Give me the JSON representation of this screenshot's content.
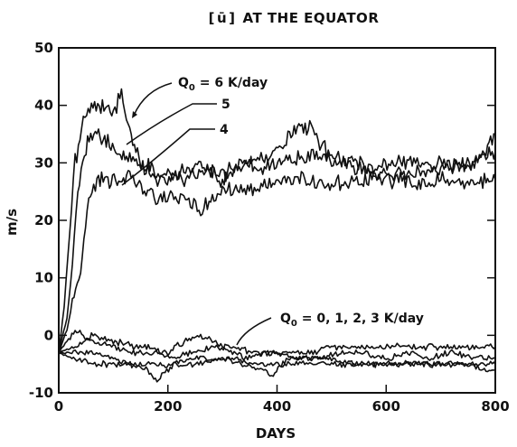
{
  "chart_data": {
    "type": "line",
    "title_bracket_open": "[",
    "title_bar_u": "ū",
    "title_bracket_close": "]",
    "title_text": "AT THE EQUATOR",
    "xlabel": "DAYS",
    "ylabel": "m/s",
    "xlim": [
      0,
      800
    ],
    "ylim": [
      -10,
      50
    ],
    "xticks": [
      0,
      200,
      400,
      600,
      800
    ],
    "yticks": [
      -10,
      0,
      10,
      20,
      30,
      40,
      50
    ],
    "grid": false,
    "annotations": {
      "q6": {
        "label": "Q",
        "sub": "0",
        "text": " = 6 K/day"
      },
      "q5": {
        "text": "5"
      },
      "q4": {
        "text": "4"
      },
      "qlow": {
        "label": "Q",
        "sub": "0",
        "text": " = 0, 1, 2, 3 K/day"
      }
    },
    "series": [
      {
        "key": "Q6",
        "points": [
          [
            0,
            -3
          ],
          [
            10,
            5
          ],
          [
            20,
            18
          ],
          [
            30,
            30
          ],
          [
            45,
            37
          ],
          [
            60,
            39.5
          ],
          [
            80,
            40
          ],
          [
            100,
            39
          ],
          [
            115,
            42
          ],
          [
            130,
            36
          ],
          [
            150,
            30
          ],
          [
            170,
            29
          ],
          [
            200,
            28
          ],
          [
            230,
            27
          ],
          [
            260,
            29
          ],
          [
            300,
            28
          ],
          [
            340,
            30
          ],
          [
            380,
            31
          ],
          [
            420,
            34
          ],
          [
            440,
            37
          ],
          [
            460,
            36
          ],
          [
            500,
            31
          ],
          [
            540,
            29
          ],
          [
            580,
            28
          ],
          [
            620,
            28
          ],
          [
            660,
            28
          ],
          [
            700,
            29
          ],
          [
            740,
            29
          ],
          [
            780,
            31
          ],
          [
            800,
            35
          ]
        ]
      },
      {
        "key": "Q5",
        "points": [
          [
            0,
            -3
          ],
          [
            15,
            3
          ],
          [
            25,
            12
          ],
          [
            35,
            26
          ],
          [
            50,
            33
          ],
          [
            70,
            35
          ],
          [
            90,
            34
          ],
          [
            110,
            32
          ],
          [
            130,
            31
          ],
          [
            160,
            29
          ],
          [
            190,
            27
          ],
          [
            220,
            28
          ],
          [
            260,
            30
          ],
          [
            300,
            27
          ],
          [
            340,
            30
          ],
          [
            380,
            29
          ],
          [
            420,
            31
          ],
          [
            460,
            31
          ],
          [
            500,
            31
          ],
          [
            540,
            30
          ],
          [
            580,
            29
          ],
          [
            620,
            30
          ],
          [
            660,
            30
          ],
          [
            700,
            30
          ],
          [
            740,
            30
          ],
          [
            780,
            31
          ],
          [
            800,
            32
          ]
        ]
      },
      {
        "key": "Q4",
        "points": [
          [
            0,
            -3
          ],
          [
            15,
            1
          ],
          [
            25,
            6
          ],
          [
            40,
            11
          ],
          [
            55,
            24
          ],
          [
            70,
            27
          ],
          [
            90,
            27
          ],
          [
            110,
            27
          ],
          [
            130,
            28
          ],
          [
            160,
            25
          ],
          [
            190,
            24
          ],
          [
            220,
            24
          ],
          [
            260,
            22
          ],
          [
            300,
            25
          ],
          [
            340,
            25
          ],
          [
            380,
            26
          ],
          [
            420,
            27
          ],
          [
            460,
            27
          ],
          [
            500,
            26
          ],
          [
            540,
            27
          ],
          [
            580,
            27
          ],
          [
            620,
            27
          ],
          [
            660,
            26
          ],
          [
            700,
            27
          ],
          [
            740,
            26
          ],
          [
            780,
            27
          ],
          [
            800,
            27
          ]
        ]
      },
      {
        "key": "Q3",
        "points": [
          [
            0,
            -3
          ],
          [
            30,
            1
          ],
          [
            60,
            -1
          ],
          [
            100,
            -2
          ],
          [
            140,
            -3
          ],
          [
            170,
            -3
          ],
          [
            200,
            -3
          ],
          [
            230,
            -1
          ],
          [
            260,
            0
          ],
          [
            300,
            -2
          ],
          [
            340,
            -4
          ],
          [
            380,
            -3
          ],
          [
            420,
            -3
          ],
          [
            460,
            -3
          ],
          [
            500,
            -2
          ],
          [
            540,
            -2
          ],
          [
            580,
            -2
          ],
          [
            620,
            -2
          ],
          [
            660,
            -2
          ],
          [
            700,
            -2
          ],
          [
            740,
            -2
          ],
          [
            780,
            -2
          ],
          [
            800,
            -2
          ]
        ]
      },
      {
        "key": "Q2",
        "points": [
          [
            0,
            -3
          ],
          [
            30,
            -2
          ],
          [
            60,
            0
          ],
          [
            100,
            -1
          ],
          [
            140,
            -2
          ],
          [
            170,
            -2
          ],
          [
            200,
            -4
          ],
          [
            240,
            -3
          ],
          [
            280,
            -2
          ],
          [
            320,
            -2
          ],
          [
            360,
            -3
          ],
          [
            400,
            -3
          ],
          [
            440,
            -4
          ],
          [
            480,
            -4
          ],
          [
            520,
            -3
          ],
          [
            560,
            -3
          ],
          [
            600,
            -4
          ],
          [
            640,
            -3
          ],
          [
            680,
            -4
          ],
          [
            720,
            -3
          ],
          [
            760,
            -4
          ],
          [
            800,
            -4
          ]
        ]
      },
      {
        "key": "Q1",
        "points": [
          [
            0,
            -3
          ],
          [
            30,
            -3
          ],
          [
            60,
            -3
          ],
          [
            100,
            -4
          ],
          [
            130,
            -5
          ],
          [
            160,
            -6
          ],
          [
            180,
            -8
          ],
          [
            210,
            -5
          ],
          [
            250,
            -4
          ],
          [
            290,
            -4
          ],
          [
            330,
            -4
          ],
          [
            370,
            -6
          ],
          [
            390,
            -7
          ],
          [
            420,
            -4
          ],
          [
            460,
            -4
          ],
          [
            500,
            -4
          ],
          [
            540,
            -5
          ],
          [
            580,
            -5
          ],
          [
            620,
            -5
          ],
          [
            660,
            -5
          ],
          [
            700,
            -5
          ],
          [
            740,
            -5
          ],
          [
            780,
            -5
          ],
          [
            800,
            -5
          ]
        ]
      },
      {
        "key": "Q0",
        "points": [
          [
            0,
            -3
          ],
          [
            30,
            -4
          ],
          [
            60,
            -5
          ],
          [
            100,
            -5
          ],
          [
            140,
            -5
          ],
          [
            180,
            -5
          ],
          [
            220,
            -5
          ],
          [
            260,
            -5
          ],
          [
            300,
            -4
          ],
          [
            340,
            -5
          ],
          [
            380,
            -5
          ],
          [
            420,
            -5
          ],
          [
            460,
            -5
          ],
          [
            500,
            -5
          ],
          [
            540,
            -5
          ],
          [
            580,
            -5
          ],
          [
            620,
            -5
          ],
          [
            660,
            -5
          ],
          [
            700,
            -5
          ],
          [
            740,
            -5
          ],
          [
            780,
            -6
          ],
          [
            800,
            -6
          ]
        ]
      }
    ]
  }
}
